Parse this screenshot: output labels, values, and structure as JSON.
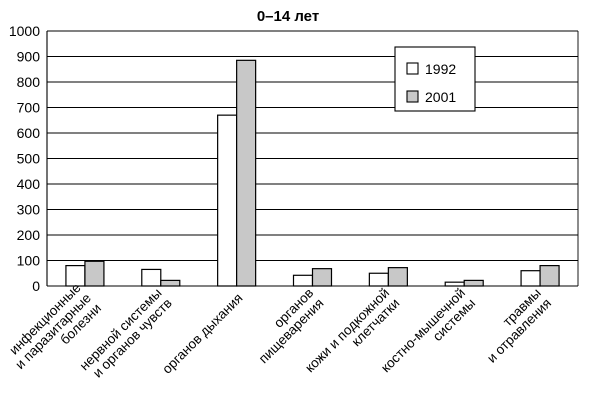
{
  "chart_data": {
    "type": "bar",
    "title": "0–14 лет",
    "xlabel": "",
    "ylabel": "",
    "ylim": [
      0,
      1000
    ],
    "yticks": [
      0,
      100,
      200,
      300,
      400,
      500,
      600,
      700,
      800,
      900,
      1000
    ],
    "grid": "horizontal",
    "legend_position": "top-right",
    "categories": [
      [
        "инфекционные",
        "и паразитарные",
        "болезни"
      ],
      [
        "нервной системы",
        "и органов чувств"
      ],
      [
        "органов дыхания"
      ],
      [
        "органов",
        "пищеварения"
      ],
      [
        "кожи и подкожной",
        "клетчатки"
      ],
      [
        "костно-мышечной",
        "системы"
      ],
      [
        "травмы",
        "и отравления"
      ]
    ],
    "series": [
      {
        "name": "1992",
        "color": "#ffffff",
        "values": [
          80,
          65,
          670,
          42,
          50,
          15,
          60
        ]
      },
      {
        "name": "2001",
        "color": "#c8c8c8",
        "values": [
          97,
          22,
          885,
          68,
          72,
          22,
          80
        ]
      }
    ]
  }
}
